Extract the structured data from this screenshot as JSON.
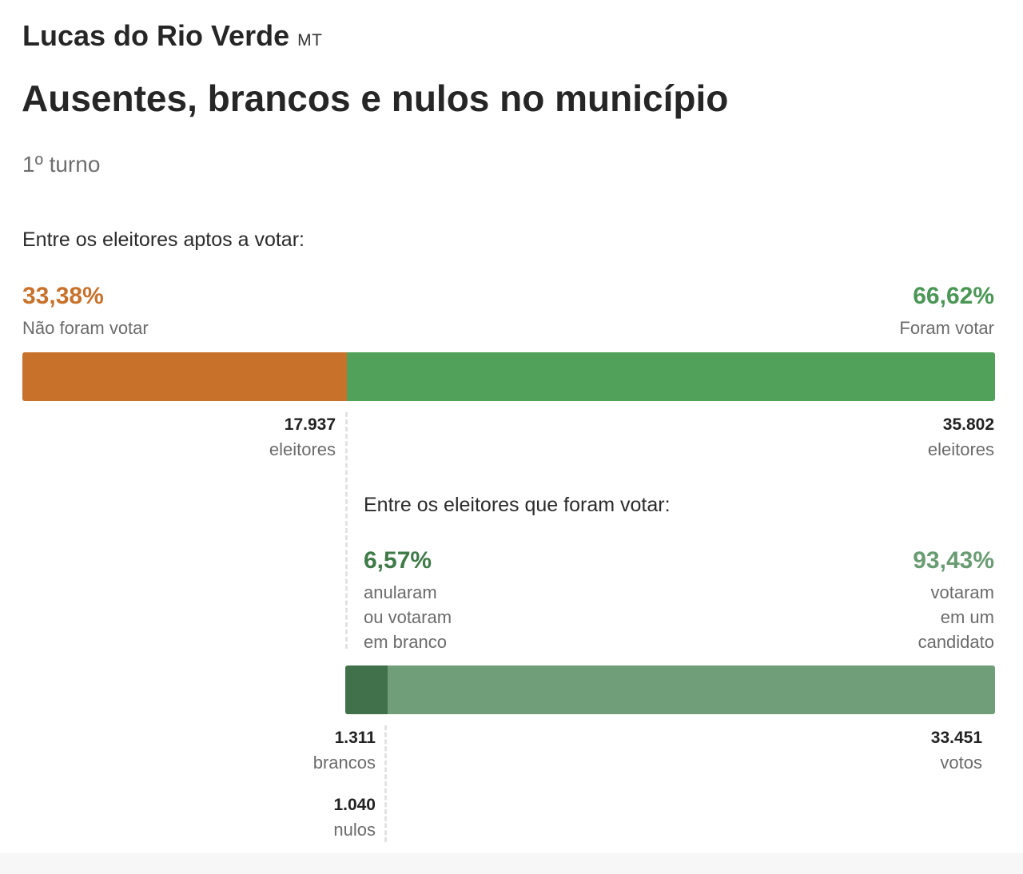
{
  "header": {
    "city": "Lucas do Rio Verde",
    "state": "MT",
    "title": "Ausentes, brancos e nulos no município",
    "round": "1º turno"
  },
  "chart_data": [
    {
      "type": "bar",
      "orientation": "horizontal-stacked",
      "section_label": "Entre os eleitores aptos a votar:",
      "segments": [
        {
          "name": "Não foram votar",
          "percent": 33.38,
          "percent_label": "33,38%",
          "label": "Não foram votar",
          "count": 17937,
          "count_label": "17.937",
          "unit": "eleitores",
          "color": "#c8712b"
        },
        {
          "name": "Foram votar",
          "percent": 66.62,
          "percent_label": "66,62%",
          "label": "Foram votar",
          "count": 35802,
          "count_label": "35.802",
          "unit": "eleitores",
          "color": "#51a15a"
        }
      ]
    },
    {
      "type": "bar",
      "orientation": "horizontal-stacked",
      "section_label": "Entre os eleitores que foram votar:",
      "segments": [
        {
          "name": "anularam ou votaram em branco",
          "percent": 6.57,
          "percent_label": "6,57%",
          "label_lines": [
            "anularam",
            "ou votaram",
            "em branco"
          ],
          "color": "#41714a",
          "breakdown": [
            {
              "count": 1311,
              "count_label": "1.311",
              "unit": "brancos"
            },
            {
              "count": 1040,
              "count_label": "1.040",
              "unit": "nulos"
            }
          ]
        },
        {
          "name": "votaram em um candidato",
          "percent": 93.43,
          "percent_label": "93,43%",
          "label_lines": [
            "votaram",
            "em um",
            "candidato"
          ],
          "count": 33451,
          "count_label": "33.451",
          "unit": "votos",
          "color": "#6f9e78"
        }
      ]
    }
  ],
  "colors": {
    "absent_text": "#c8712b",
    "voted_text": "#4a9655",
    "null_text": "#3f7a48",
    "candidate_text": "#6a9c73"
  }
}
